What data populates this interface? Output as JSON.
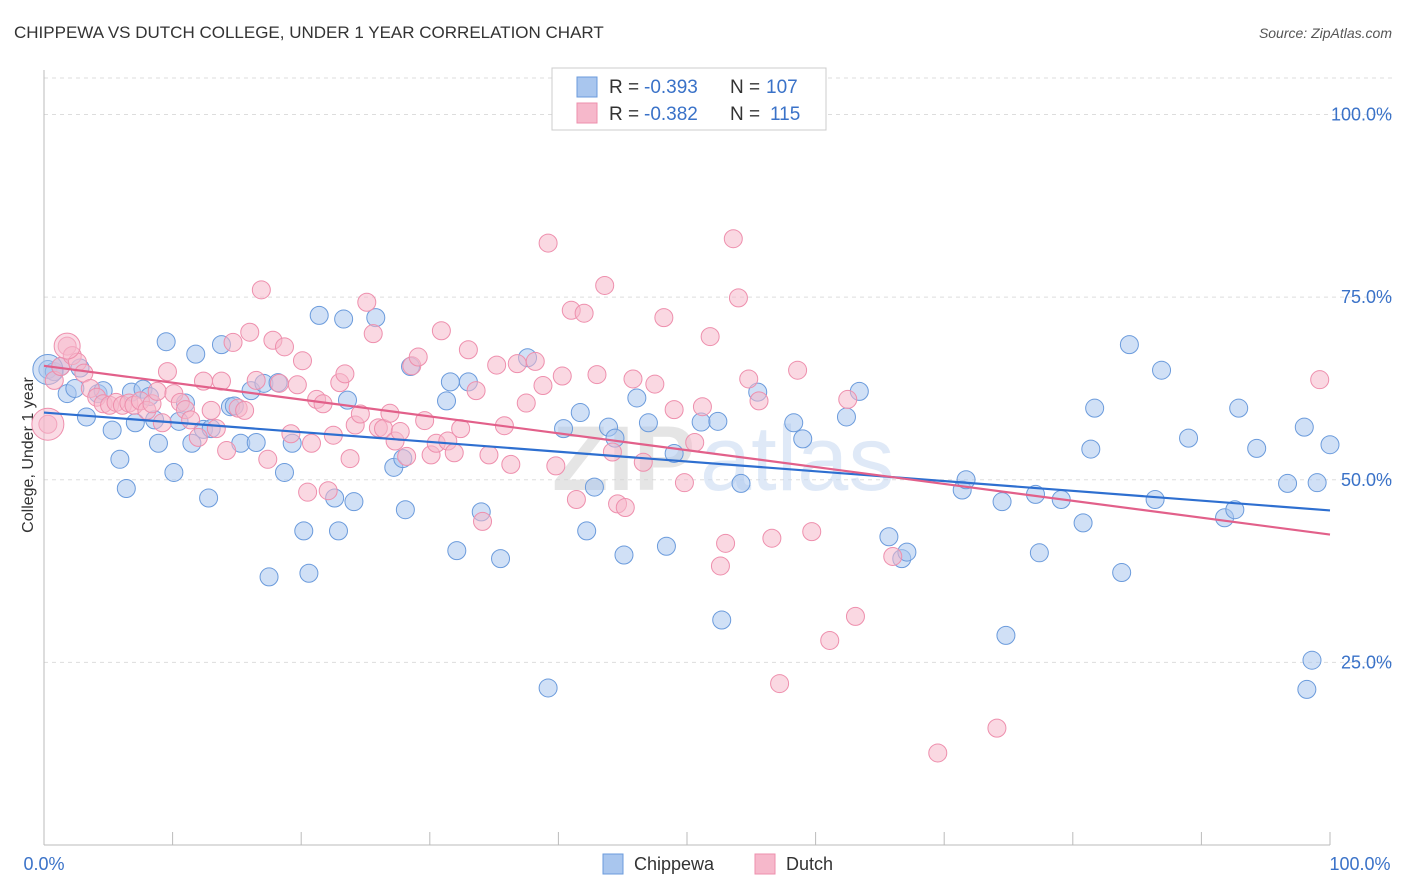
{
  "title": "CHIPPEWA VS DUTCH COLLEGE, UNDER 1 YEAR CORRELATION CHART",
  "source": "Source: ZipAtlas.com",
  "watermark": {
    "zip": "ZIP",
    "atlas": "atlas"
  },
  "legend": {
    "rows": [
      {
        "r_label": "R =",
        "r_value": "-0.393",
        "n_label": "N =",
        "n_value": "107"
      },
      {
        "r_label": "R =",
        "r_value": "-0.382",
        "n_label": "N =",
        "n_value": "115"
      }
    ]
  },
  "bottom_legend": [
    "Chippewa",
    "Dutch"
  ],
  "colors": {
    "chippewa_fill": "#a9c6ee",
    "chippewa_stroke": "#6b9bdc",
    "chippewa_line": "#2e6fd0",
    "dutch_fill": "#f6b8cb",
    "dutch_stroke": "#ee8fad",
    "dutch_line": "#e2608a",
    "axis_tick_text": "#3a72c8",
    "grid": "#dddddd"
  },
  "chart_data": {
    "type": "scatter",
    "title": "CHIPPEWA VS DUTCH COLLEGE, UNDER 1 YEAR CORRELATION CHART",
    "xlabel": "",
    "ylabel": "College, Under 1 year",
    "xlim": [
      0,
      100
    ],
    "ylim": [
      0,
      105
    ],
    "x_tick_labels": [
      "0.0%",
      "100.0%"
    ],
    "y_ticks": [
      25,
      50,
      75,
      100
    ],
    "y_tick_labels": [
      "25.0%",
      "50.0%",
      "75.0%",
      "100.0%"
    ],
    "grid": true,
    "legend_position": "top-center",
    "series": [
      {
        "name": "Chippewa",
        "trend": {
          "x0": 0,
          "y0": 59.2,
          "x1": 100,
          "y1": 45.8
        },
        "points": [
          [
            0.3,
            65.1
          ],
          [
            0.8,
            64.8
          ],
          [
            1.3,
            65.5
          ],
          [
            1.8,
            61.8
          ],
          [
            2.4,
            62.5
          ],
          [
            2.8,
            65.3
          ],
          [
            3.3,
            58.6
          ],
          [
            4.2,
            61.8
          ],
          [
            4.6,
            62.2
          ],
          [
            5.3,
            56.8
          ],
          [
            5.9,
            52.8
          ],
          [
            6.4,
            48.8
          ],
          [
            6.8,
            62.0
          ],
          [
            7.1,
            57.8
          ],
          [
            7.7,
            62.4
          ],
          [
            8.2,
            61.4
          ],
          [
            8.6,
            58.2
          ],
          [
            8.9,
            55.0
          ],
          [
            9.5,
            68.9
          ],
          [
            10.1,
            51.0
          ],
          [
            10.5,
            58.0
          ],
          [
            11.0,
            60.5
          ],
          [
            11.5,
            55.0
          ],
          [
            11.8,
            67.2
          ],
          [
            12.4,
            56.9
          ],
          [
            12.8,
            47.5
          ],
          [
            13.0,
            57.0
          ],
          [
            13.8,
            68.5
          ],
          [
            14.5,
            60.0
          ],
          [
            14.8,
            60.1
          ],
          [
            15.3,
            55.0
          ],
          [
            16.1,
            62.2
          ],
          [
            16.5,
            55.1
          ],
          [
            17.1,
            63.2
          ],
          [
            17.5,
            36.7
          ],
          [
            18.2,
            63.3
          ],
          [
            18.7,
            51.0
          ],
          [
            19.3,
            55.0
          ],
          [
            20.2,
            43.0
          ],
          [
            20.6,
            37.2
          ],
          [
            21.4,
            72.5
          ],
          [
            22.6,
            47.5
          ],
          [
            22.9,
            43.0
          ],
          [
            23.3,
            72.0
          ],
          [
            23.6,
            60.9
          ],
          [
            24.1,
            47.0
          ],
          [
            25.8,
            72.2
          ],
          [
            27.2,
            51.7
          ],
          [
            27.9,
            52.9
          ],
          [
            28.1,
            45.9
          ],
          [
            28.5,
            65.5
          ],
          [
            31.3,
            60.8
          ],
          [
            31.6,
            63.4
          ],
          [
            32.1,
            40.3
          ],
          [
            33.0,
            63.4
          ],
          [
            34.0,
            45.6
          ],
          [
            35.5,
            39.2
          ],
          [
            37.6,
            66.7
          ],
          [
            39.2,
            21.5
          ],
          [
            40.4,
            57.0
          ],
          [
            41.7,
            59.2
          ],
          [
            42.2,
            43.0
          ],
          [
            42.8,
            49.0
          ],
          [
            43.9,
            57.2
          ],
          [
            44.4,
            55.7
          ],
          [
            45.1,
            39.7
          ],
          [
            46.1,
            61.2
          ],
          [
            47.0,
            57.8
          ],
          [
            48.4,
            40.9
          ],
          [
            49.0,
            53.6
          ],
          [
            51.1,
            57.9
          ],
          [
            52.4,
            58.0
          ],
          [
            52.7,
            30.8
          ],
          [
            54.2,
            49.5
          ],
          [
            55.5,
            62.0
          ],
          [
            58.3,
            57.8
          ],
          [
            59.0,
            55.6
          ],
          [
            62.4,
            58.6
          ],
          [
            63.4,
            62.1
          ],
          [
            65.7,
            42.2
          ],
          [
            66.7,
            39.2
          ],
          [
            67.1,
            40.1
          ],
          [
            71.4,
            48.6
          ],
          [
            71.7,
            50.0
          ],
          [
            74.5,
            47.0
          ],
          [
            74.8,
            28.7
          ],
          [
            77.1,
            48.0
          ],
          [
            77.4,
            40.0
          ],
          [
            79.1,
            47.3
          ],
          [
            80.8,
            44.1
          ],
          [
            81.4,
            54.2
          ],
          [
            81.7,
            59.8
          ],
          [
            83.8,
            37.3
          ],
          [
            84.4,
            68.5
          ],
          [
            86.4,
            47.3
          ],
          [
            86.9,
            65.0
          ],
          [
            89.0,
            55.7
          ],
          [
            91.8,
            44.8
          ],
          [
            92.6,
            45.9
          ],
          [
            92.9,
            59.8
          ],
          [
            94.3,
            54.3
          ],
          [
            96.7,
            49.5
          ],
          [
            98.0,
            57.2
          ],
          [
            98.2,
            21.3
          ],
          [
            98.6,
            25.3
          ],
          [
            99.0,
            49.6
          ],
          [
            100.0,
            54.8
          ]
        ]
      },
      {
        "name": "Dutch",
        "trend": {
          "x0": 0,
          "y0": 65.6,
          "x1": 100,
          "y1": 42.5
        },
        "points": [
          [
            0.3,
            57.6
          ],
          [
            0.8,
            63.6
          ],
          [
            1.3,
            65.5
          ],
          [
            1.8,
            68.3
          ],
          [
            2.2,
            67.0
          ],
          [
            2.6,
            66.1
          ],
          [
            3.1,
            64.6
          ],
          [
            3.6,
            62.5
          ],
          [
            4.1,
            61.3
          ],
          [
            4.6,
            60.4
          ],
          [
            5.1,
            60.2
          ],
          [
            5.6,
            60.6
          ],
          [
            6.1,
            60.2
          ],
          [
            6.6,
            60.5
          ],
          [
            7.0,
            60.2
          ],
          [
            7.5,
            60.8
          ],
          [
            8.0,
            59.5
          ],
          [
            8.4,
            60.4
          ],
          [
            8.8,
            62.1
          ],
          [
            9.2,
            57.8
          ],
          [
            9.6,
            64.8
          ],
          [
            10.1,
            61.8
          ],
          [
            10.6,
            60.6
          ],
          [
            11.0,
            59.6
          ],
          [
            11.4,
            58.2
          ],
          [
            12.0,
            55.8
          ],
          [
            12.4,
            63.5
          ],
          [
            13.0,
            59.5
          ],
          [
            13.4,
            57.0
          ],
          [
            13.8,
            63.5
          ],
          [
            14.2,
            54.0
          ],
          [
            14.7,
            68.8
          ],
          [
            15.1,
            59.8
          ],
          [
            15.6,
            59.5
          ],
          [
            16.0,
            70.2
          ],
          [
            16.5,
            63.6
          ],
          [
            16.9,
            76.0
          ],
          [
            17.4,
            52.8
          ],
          [
            17.8,
            69.1
          ],
          [
            18.3,
            63.2
          ],
          [
            18.7,
            68.2
          ],
          [
            19.2,
            56.3
          ],
          [
            19.7,
            63.0
          ],
          [
            20.1,
            66.3
          ],
          [
            20.5,
            48.3
          ],
          [
            20.8,
            55.0
          ],
          [
            21.2,
            61.0
          ],
          [
            21.7,
            60.4
          ],
          [
            22.1,
            48.5
          ],
          [
            22.5,
            56.1
          ],
          [
            23.0,
            63.3
          ],
          [
            23.4,
            64.5
          ],
          [
            23.8,
            52.9
          ],
          [
            24.2,
            57.5
          ],
          [
            24.6,
            59.0
          ],
          [
            25.1,
            74.3
          ],
          [
            25.6,
            70.0
          ],
          [
            26.0,
            57.1
          ],
          [
            26.4,
            57.0
          ],
          [
            26.9,
            59.1
          ],
          [
            27.3,
            55.3
          ],
          [
            27.7,
            56.6
          ],
          [
            28.2,
            53.2
          ],
          [
            28.6,
            65.6
          ],
          [
            29.1,
            66.8
          ],
          [
            29.6,
            58.1
          ],
          [
            30.1,
            53.4
          ],
          [
            30.5,
            55.0
          ],
          [
            30.9,
            70.4
          ],
          [
            31.4,
            55.3
          ],
          [
            31.9,
            53.7
          ],
          [
            32.4,
            57.0
          ],
          [
            33.0,
            67.8
          ],
          [
            33.6,
            62.2
          ],
          [
            34.1,
            44.3
          ],
          [
            34.6,
            53.4
          ],
          [
            35.2,
            65.7
          ],
          [
            35.8,
            57.4
          ],
          [
            36.3,
            52.1
          ],
          [
            36.8,
            65.9
          ],
          [
            37.5,
            60.5
          ],
          [
            38.2,
            66.2
          ],
          [
            38.8,
            62.9
          ],
          [
            39.2,
            82.4
          ],
          [
            39.8,
            51.9
          ],
          [
            40.3,
            64.2
          ],
          [
            41.0,
            73.2
          ],
          [
            41.4,
            47.3
          ],
          [
            42.0,
            72.8
          ],
          [
            43.0,
            64.4
          ],
          [
            43.6,
            76.6
          ],
          [
            44.2,
            53.8
          ],
          [
            44.6,
            46.7
          ],
          [
            45.2,
            46.2
          ],
          [
            45.8,
            63.8
          ],
          [
            46.6,
            52.4
          ],
          [
            47.5,
            63.1
          ],
          [
            48.2,
            72.2
          ],
          [
            49.0,
            59.6
          ],
          [
            49.8,
            49.6
          ],
          [
            50.6,
            55.1
          ],
          [
            51.2,
            60.0
          ],
          [
            51.8,
            69.6
          ],
          [
            52.6,
            38.2
          ],
          [
            53.0,
            41.3
          ],
          [
            53.6,
            83.0
          ],
          [
            54.0,
            74.9
          ],
          [
            54.8,
            63.8
          ],
          [
            55.6,
            60.8
          ],
          [
            56.6,
            42.0
          ],
          [
            57.2,
            22.1
          ],
          [
            58.6,
            65.0
          ],
          [
            59.7,
            42.9
          ],
          [
            61.1,
            28.0
          ],
          [
            62.5,
            61.0
          ],
          [
            63.1,
            31.3
          ],
          [
            66.0,
            39.5
          ],
          [
            69.5,
            12.6
          ],
          [
            74.1,
            16.0
          ],
          [
            99.2,
            63.7
          ]
        ]
      }
    ]
  }
}
